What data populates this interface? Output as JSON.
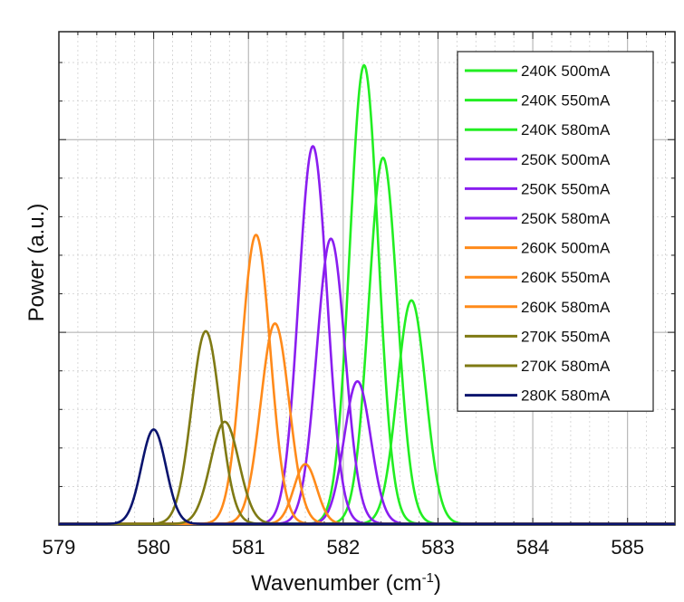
{
  "chart_data": {
    "type": "line",
    "xlabel": "Wavenumber (cm",
    "xlabel_sup": "-1",
    "xlabel_suffix": ")",
    "ylabel": "Power (a.u.)",
    "xlim": [
      579,
      585.5
    ],
    "ylim": [
      0,
      1.28
    ],
    "x_ticks": [
      579,
      580,
      581,
      582,
      583,
      584,
      585
    ],
    "grid": true,
    "legend_position": "top-right",
    "series": [
      {
        "name": "240K 500mA",
        "color": "#22ee22",
        "peak": 582.22,
        "amp": 1.19,
        "width": 0.15
      },
      {
        "name": "240K 550mA",
        "color": "#22ee22",
        "peak": 582.42,
        "amp": 0.95,
        "width": 0.15
      },
      {
        "name": "240K 580mA",
        "color": "#22ee22",
        "peak": 582.72,
        "amp": 0.58,
        "width": 0.15
      },
      {
        "name": "250K 500mA",
        "color": "#8a1ef0",
        "peak": 581.68,
        "amp": 0.98,
        "width": 0.15
      },
      {
        "name": "250K 550mA",
        "color": "#8a1ef0",
        "peak": 581.87,
        "amp": 0.74,
        "width": 0.15
      },
      {
        "name": "250K 580mA",
        "color": "#8a1ef0",
        "peak": 582.15,
        "amp": 0.37,
        "width": 0.14
      },
      {
        "name": "260K 500mA",
        "color": "#ff8a1a",
        "peak": 581.08,
        "amp": 0.75,
        "width": 0.15
      },
      {
        "name": "260K 550mA",
        "color": "#ff8a1a",
        "peak": 581.28,
        "amp": 0.52,
        "width": 0.15
      },
      {
        "name": "260K 580mA",
        "color": "#ff8a1a",
        "peak": 581.6,
        "amp": 0.155,
        "width": 0.12
      },
      {
        "name": "270K 550mA",
        "color": "#7f7a14",
        "peak": 580.55,
        "amp": 0.5,
        "width": 0.15
      },
      {
        "name": "270K 580mA",
        "color": "#7f7a14",
        "peak": 580.75,
        "amp": 0.265,
        "width": 0.15
      },
      {
        "name": "280K 580mA",
        "color": "#0a146e",
        "peak": 580.0,
        "amp": 0.245,
        "width": 0.13
      }
    ]
  }
}
